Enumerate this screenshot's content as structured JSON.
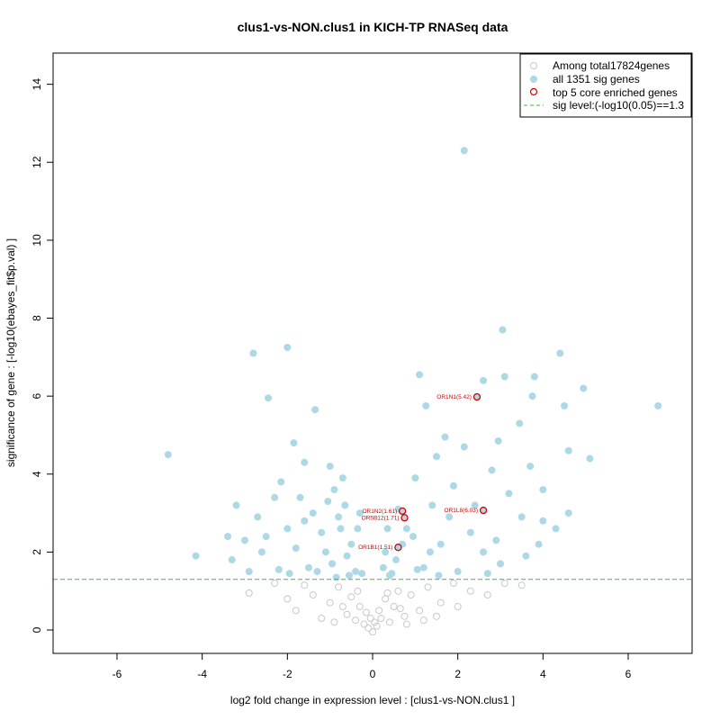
{
  "chart_data": {
    "type": "scatter",
    "title": "clus1-vs-NON.clus1 in KICH-TP RNASeq data",
    "xlabel": "log2 fold change in expression level : [clus1-vs-NON.clus1 ]",
    "ylabel": "significance of gene : [-log10(ebayes_fit$p.val) ]",
    "xlim": [
      -7.5,
      7.5
    ],
    "ylim": [
      -0.6,
      14.8
    ],
    "xticks": [
      -6,
      -4,
      -2,
      0,
      2,
      4,
      6
    ],
    "yticks": [
      0,
      2,
      4,
      6,
      8,
      10,
      12,
      14
    ],
    "sig_threshold": 1.3,
    "colors": {
      "non_sig": "#c8c8c8",
      "sig": "#add8e6",
      "core": "#d40000",
      "threshold_line": "#22cc22"
    },
    "legend": {
      "position": "top-right",
      "entries": [
        {
          "label": "Among total17824genes",
          "marker": "open-circle-gray"
        },
        {
          "label": "all 1351 sig genes",
          "marker": "filled-circle-lightblue"
        },
        {
          "label": "top 5 core enriched genes",
          "marker": "open-circle-red"
        },
        {
          "label": "sig level:(-log10(0.05)==1.3",
          "marker": "dashed-line-green"
        }
      ]
    },
    "sig_points": [
      [
        -4.8,
        4.5
      ],
      [
        -4.15,
        1.9
      ],
      [
        -2.8,
        7.1
      ],
      [
        -2.45,
        5.95
      ],
      [
        -2.0,
        7.25
      ],
      [
        -1.35,
        5.65
      ],
      [
        -1.85,
        4.8
      ],
      [
        -1.0,
        4.2
      ],
      [
        -3.2,
        3.2
      ],
      [
        -2.7,
        2.9
      ],
      [
        -2.3,
        3.4
      ],
      [
        -1.6,
        4.3
      ],
      [
        -0.9,
        3.6
      ],
      [
        -1.4,
        3.0
      ],
      [
        -2.0,
        2.6
      ],
      [
        -3.0,
        2.3
      ],
      [
        -0.7,
        3.9
      ],
      [
        -1.2,
        2.5
      ],
      [
        -0.8,
        2.9
      ],
      [
        -2.6,
        2.0
      ],
      [
        -0.3,
        3.0
      ],
      [
        -0.5,
        2.2
      ],
      [
        -1.8,
        2.1
      ],
      [
        -3.3,
        1.8
      ],
      [
        -0.95,
        1.7
      ],
      [
        -0.4,
        1.5
      ],
      [
        -0.6,
        1.9
      ],
      [
        -1.5,
        1.6
      ],
      [
        -2.2,
        1.55
      ],
      [
        -0.25,
        1.45
      ],
      [
        -1.1,
        2.0
      ],
      [
        -0.75,
        2.6
      ],
      [
        -2.9,
        1.5
      ],
      [
        -1.95,
        1.45
      ],
      [
        -1.3,
        1.5
      ],
      [
        -0.55,
        1.4
      ],
      [
        -2.5,
        2.4
      ],
      [
        -1.7,
        3.4
      ],
      [
        -0.65,
        3.2
      ],
      [
        -3.4,
        2.4
      ],
      [
        -0.35,
        2.6
      ],
      [
        -1.05,
        3.3
      ],
      [
        -2.15,
        3.8
      ],
      [
        -0.85,
        1.35
      ],
      [
        -1.6,
        2.8
      ],
      [
        2.15,
        12.3
      ],
      [
        3.05,
        7.7
      ],
      [
        4.4,
        7.1
      ],
      [
        3.8,
        6.5
      ],
      [
        3.1,
        6.5
      ],
      [
        2.6,
        6.4
      ],
      [
        1.1,
        6.55
      ],
      [
        4.95,
        6.2
      ],
      [
        3.75,
        6.0
      ],
      [
        4.5,
        5.75
      ],
      [
        1.25,
        5.75
      ],
      [
        6.7,
        5.75
      ],
      [
        3.45,
        5.3
      ],
      [
        1.7,
        4.95
      ],
      [
        2.95,
        4.85
      ],
      [
        2.15,
        4.7
      ],
      [
        4.6,
        4.6
      ],
      [
        5.1,
        4.4
      ],
      [
        1.5,
        4.45
      ],
      [
        3.7,
        4.2
      ],
      [
        2.8,
        4.1
      ],
      [
        4.0,
        3.6
      ],
      [
        3.2,
        3.5
      ],
      [
        1.0,
        3.9
      ],
      [
        1.9,
        3.7
      ],
      [
        4.6,
        3.0
      ],
      [
        3.5,
        2.9
      ],
      [
        2.3,
        2.5
      ],
      [
        1.4,
        3.2
      ],
      [
        0.8,
        2.6
      ],
      [
        4.3,
        2.6
      ],
      [
        3.9,
        2.2
      ],
      [
        2.6,
        2.0
      ],
      [
        1.6,
        2.2
      ],
      [
        0.55,
        1.8
      ],
      [
        0.35,
        2.6
      ],
      [
        1.2,
        1.6
      ],
      [
        2.0,
        1.5
      ],
      [
        3.0,
        1.7
      ],
      [
        0.45,
        1.45
      ],
      [
        0.25,
        1.6
      ],
      [
        0.95,
        2.4
      ],
      [
        1.8,
        2.9
      ],
      [
        2.9,
        2.3
      ],
      [
        3.6,
        1.9
      ],
      [
        0.6,
        3.1
      ],
      [
        1.35,
        2.0
      ],
      [
        2.4,
        3.2
      ],
      [
        0.4,
        1.4
      ],
      [
        0.7,
        2.2
      ],
      [
        4.0,
        2.8
      ],
      [
        1.05,
        1.55
      ],
      [
        2.7,
        1.45
      ],
      [
        0.3,
        2.0
      ],
      [
        1.55,
        1.4
      ]
    ],
    "nonsig_points": [
      [
        -2.3,
        1.2
      ],
      [
        -2.9,
        0.95
      ],
      [
        -1.8,
        0.5
      ],
      [
        -1.4,
        0.9
      ],
      [
        -1.0,
        0.7
      ],
      [
        -0.8,
        1.1
      ],
      [
        -0.6,
        0.4
      ],
      [
        -0.5,
        0.85
      ],
      [
        -0.4,
        0.25
      ],
      [
        -0.3,
        0.6
      ],
      [
        -0.2,
        0.15
      ],
      [
        -0.15,
        0.45
      ],
      [
        -0.1,
        0.05
      ],
      [
        -0.05,
        0.3
      ],
      [
        0.0,
        -0.05
      ],
      [
        0.05,
        0.2
      ],
      [
        0.1,
        0.1
      ],
      [
        0.15,
        0.5
      ],
      [
        0.2,
        0.3
      ],
      [
        0.3,
        0.8
      ],
      [
        0.4,
        0.2
      ],
      [
        0.5,
        0.6
      ],
      [
        0.6,
        1.0
      ],
      [
        0.75,
        0.35
      ],
      [
        0.9,
        0.9
      ],
      [
        1.1,
        0.5
      ],
      [
        1.3,
        1.1
      ],
      [
        1.6,
        0.7
      ],
      [
        1.9,
        1.2
      ],
      [
        2.3,
        1.0
      ],
      [
        2.7,
        0.9
      ],
      [
        3.1,
        1.2
      ],
      [
        3.5,
        1.15
      ],
      [
        -1.2,
        0.3
      ],
      [
        -0.9,
        0.2
      ],
      [
        0.8,
        0.15
      ],
      [
        1.2,
        0.25
      ],
      [
        -1.6,
        1.15
      ],
      [
        1.5,
        0.35
      ],
      [
        -0.7,
        0.6
      ],
      [
        0.35,
        0.95
      ],
      [
        -0.35,
        1.0
      ],
      [
        2.0,
        0.6
      ],
      [
        -2.0,
        0.8
      ],
      [
        0.65,
        0.55
      ]
    ],
    "core_genes": [
      {
        "label": "OR1N1(5.42)",
        "x": 2.45,
        "y": 5.98
      },
      {
        "label": "OR1N2(1.61)",
        "x": 0.7,
        "y": 3.05
      },
      {
        "label": "OR1L8(6.03)",
        "x": 2.6,
        "y": 3.07
      },
      {
        "label": "OR5B12(1.71)",
        "x": 0.75,
        "y": 2.88
      },
      {
        "label": "OR1B1(1.51)",
        "x": 0.6,
        "y": 2.12
      }
    ]
  }
}
